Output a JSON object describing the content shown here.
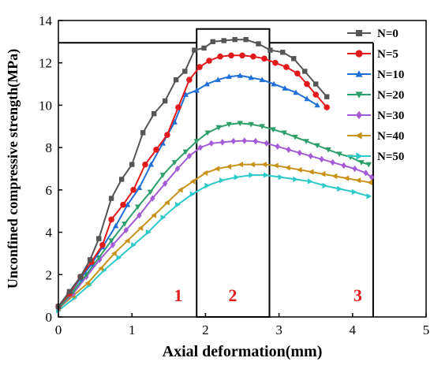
{
  "chart_data": {
    "type": "line",
    "xlabel": "Axial deformation(mm)",
    "ylabel": "Unconfined compressive strength(MPa)",
    "xlim": [
      0,
      5
    ],
    "ylim": [
      0,
      14
    ],
    "xticks": [
      0,
      1,
      2,
      3,
      4,
      5
    ],
    "yticks": [
      0,
      2,
      4,
      6,
      8,
      10,
      12,
      14
    ],
    "legend_position": "top-right",
    "reference_line_y": 12.95,
    "regions": [
      {
        "label": "1",
        "x_range": [
          0,
          1.88
        ],
        "label_at": [
          1.63,
          1.05
        ]
      },
      {
        "label": "2",
        "x_range": [
          1.88,
          2.87
        ],
        "y_top": 13.6,
        "label_at": [
          2.37,
          1.05
        ]
      },
      {
        "label": "3",
        "x_range": [
          2.87,
          4.28
        ],
        "label_at": [
          4.07,
          1.05
        ]
      }
    ],
    "region_label_color": "#e31a1c",
    "series": [
      {
        "name": "N=0",
        "color": "#555555",
        "marker": "square",
        "x": [
          0.0,
          0.15,
          0.3,
          0.43,
          0.55,
          0.72,
          0.86,
          1.0,
          1.15,
          1.3,
          1.45,
          1.6,
          1.72,
          1.85,
          1.98,
          2.1,
          2.25,
          2.4,
          2.55,
          2.72,
          2.88,
          3.05,
          3.2,
          3.35,
          3.5,
          3.65
        ],
        "y": [
          0.5,
          1.2,
          1.9,
          2.7,
          3.7,
          5.6,
          6.5,
          7.2,
          8.7,
          9.6,
          10.2,
          11.2,
          11.6,
          12.6,
          12.7,
          13.0,
          13.05,
          13.1,
          13.1,
          12.9,
          12.6,
          12.5,
          12.2,
          11.6,
          11.0,
          10.4
        ]
      },
      {
        "name": "N=5",
        "color": "#e31a1c",
        "marker": "circle",
        "x": [
          0.0,
          0.15,
          0.3,
          0.45,
          0.6,
          0.72,
          0.88,
          1.02,
          1.18,
          1.33,
          1.48,
          1.63,
          1.78,
          1.92,
          2.05,
          2.2,
          2.35,
          2.5,
          2.65,
          2.8,
          2.95,
          3.1,
          3.25,
          3.38,
          3.5,
          3.65
        ],
        "y": [
          0.5,
          1.1,
          1.9,
          2.6,
          3.4,
          4.6,
          5.3,
          6.0,
          7.2,
          7.9,
          8.6,
          9.9,
          11.2,
          11.8,
          12.1,
          12.3,
          12.35,
          12.35,
          12.3,
          12.2,
          12.0,
          11.8,
          11.5,
          11.0,
          10.5,
          9.9
        ]
      },
      {
        "name": "N=10",
        "color": "#1f6fd6",
        "marker": "triangle-up",
        "x": [
          0.0,
          0.15,
          0.3,
          0.45,
          0.6,
          0.78,
          0.94,
          1.1,
          1.26,
          1.42,
          1.58,
          1.73,
          1.88,
          2.02,
          2.17,
          2.32,
          2.47,
          2.62,
          2.77,
          2.93,
          3.08,
          3.23,
          3.38,
          3.52
        ],
        "y": [
          0.5,
          1.1,
          1.8,
          2.5,
          3.3,
          4.3,
          5.3,
          6.1,
          7.2,
          8.2,
          9.2,
          10.5,
          10.7,
          11.0,
          11.2,
          11.35,
          11.4,
          11.3,
          11.2,
          11.0,
          10.8,
          10.6,
          10.3,
          10.0
        ]
      },
      {
        "name": "N=20",
        "color": "#2e9e6b",
        "marker": "triangle-down",
        "x": [
          0.0,
          0.2,
          0.38,
          0.55,
          0.72,
          0.9,
          1.08,
          1.25,
          1.42,
          1.58,
          1.73,
          1.88,
          2.03,
          2.18,
          2.32,
          2.47,
          2.62,
          2.77,
          2.92,
          3.07,
          3.22,
          3.37,
          3.52,
          3.67,
          3.82,
          3.97,
          4.12,
          4.22
        ],
        "y": [
          0.4,
          1.2,
          2.0,
          2.8,
          3.6,
          4.4,
          5.2,
          5.9,
          6.7,
          7.3,
          7.8,
          8.3,
          8.7,
          8.95,
          9.1,
          9.15,
          9.1,
          9.0,
          8.85,
          8.7,
          8.5,
          8.3,
          8.1,
          7.9,
          7.7,
          7.55,
          7.3,
          7.2
        ]
      },
      {
        "name": "N=30",
        "color": "#a35bd6",
        "marker": "diamond",
        "x": [
          0.0,
          0.2,
          0.38,
          0.56,
          0.74,
          0.92,
          1.1,
          1.28,
          1.45,
          1.62,
          1.78,
          1.93,
          2.08,
          2.23,
          2.38,
          2.53,
          2.68,
          2.83,
          2.98,
          3.13,
          3.28,
          3.43,
          3.58,
          3.73,
          3.88,
          4.03,
          4.18,
          4.26
        ],
        "y": [
          0.4,
          1.1,
          1.9,
          2.7,
          3.4,
          4.1,
          4.8,
          5.6,
          6.3,
          7.0,
          7.6,
          8.0,
          8.2,
          8.25,
          8.3,
          8.32,
          8.3,
          8.2,
          8.05,
          7.9,
          7.75,
          7.6,
          7.45,
          7.3,
          7.15,
          7.0,
          6.8,
          6.6
        ]
      },
      {
        "name": "N=40",
        "color": "#c8921a",
        "marker": "triangle-left",
        "x": [
          0.0,
          0.2,
          0.4,
          0.58,
          0.76,
          0.94,
          1.12,
          1.3,
          1.48,
          1.66,
          1.83,
          2.0,
          2.16,
          2.32,
          2.48,
          2.64,
          2.8,
          2.96,
          3.12,
          3.28,
          3.44,
          3.6,
          3.76,
          3.92,
          4.08,
          4.24
        ],
        "y": [
          0.4,
          1.0,
          1.6,
          2.3,
          3.0,
          3.6,
          4.2,
          4.8,
          5.4,
          6.0,
          6.4,
          6.8,
          7.0,
          7.1,
          7.2,
          7.2,
          7.2,
          7.15,
          7.05,
          6.95,
          6.85,
          6.75,
          6.65,
          6.55,
          6.45,
          6.35
        ]
      },
      {
        "name": "N=50",
        "color": "#2ec9c9",
        "marker": "triangle-right",
        "x": [
          0.0,
          0.22,
          0.42,
          0.62,
          0.82,
          1.02,
          1.22,
          1.42,
          1.62,
          1.82,
          2.02,
          2.22,
          2.42,
          2.62,
          2.82,
          3.02,
          3.22,
          3.42,
          3.62,
          3.82,
          4.02,
          4.22
        ],
        "y": [
          0.3,
          0.9,
          1.5,
          2.2,
          2.8,
          3.4,
          4.0,
          4.7,
          5.3,
          5.8,
          6.2,
          6.45,
          6.6,
          6.7,
          6.7,
          6.6,
          6.5,
          6.4,
          6.2,
          6.05,
          5.9,
          5.7
        ]
      }
    ]
  }
}
